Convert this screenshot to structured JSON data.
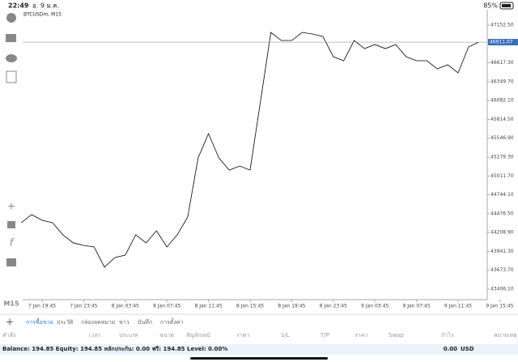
{
  "status_bar": {
    "time": "22:49",
    "date": "อ. 9 ม.ค.",
    "battery": "85%"
  },
  "sidebar": {
    "timeframe": "M15"
  },
  "chart_data": {
    "type": "line",
    "title": "BTCUSDm, M15",
    "categories": [
      null,
      null,
      "7 Jan 19:45",
      null,
      null,
      null,
      "7 Jan 23:45",
      null,
      null,
      null,
      "8 Jan 03:45",
      null,
      null,
      null,
      "8 Jan 07:45",
      null,
      null,
      null,
      "8 Jan 11:45",
      null,
      null,
      null,
      "8 Jan 15:45",
      null,
      null,
      null,
      "8 Jan 19:45",
      null,
      null,
      null,
      "8 Jan 23:45",
      null,
      null,
      null,
      "9 Jan 03:45",
      null,
      null,
      null,
      "9 Jan 07:45",
      null,
      null,
      null,
      "9 Jan 11:45",
      null,
      null,
      null,
      "9 Jan 15:45"
    ],
    "series": [
      {
        "color": "#000000",
        "values": [
          44349,
          44464,
          44383,
          44349,
          44177,
          44062,
          44027,
          44004,
          43717,
          43855,
          43889,
          44177,
          44062,
          44234,
          44004,
          44177,
          44429,
          45268,
          45613,
          45268,
          45096,
          45153,
          45096,
          46072,
          47049,
          46934,
          46934,
          47049,
          47026,
          46992,
          46704,
          46647,
          46934,
          46819,
          46877,
          46819,
          46877,
          46704,
          46647,
          46647,
          46532,
          46590,
          46475,
          46842,
          46911,
          null,
          null
        ]
      }
    ],
    "ylim": [
      43257,
      47348
    ],
    "yticks": [
      {
        "value": 43406.1,
        "label": "43406.10"
      },
      {
        "value": 43673.7,
        "label": "43673.70"
      },
      {
        "value": 43941.3,
        "label": "43941.30"
      },
      {
        "value": 44208.9,
        "label": "44208.90"
      },
      {
        "value": 44476.5,
        "label": "44476.50"
      },
      {
        "value": 44744.1,
        "label": "44744.10"
      },
      {
        "value": 45011.7,
        "label": "45011.70"
      },
      {
        "value": 45279.3,
        "label": "45279.30"
      },
      {
        "value": 45546.9,
        "label": "45546.90"
      },
      {
        "value": 45814.5,
        "label": "45814.50"
      },
      {
        "value": 46082.1,
        "label": "46082.10"
      },
      {
        "value": 46349.7,
        "label": "46349.70"
      },
      {
        "value": 46617.3,
        "label": "46617.30"
      },
      {
        "value": 47152.5,
        "label": "47152.50"
      }
    ],
    "current_price": 46911.07
  },
  "tabs": [
    "การซื้อขาย",
    "ประวัติ",
    "กล่องจดหมาย",
    "ข่าว",
    "บันทึก",
    "การตั้งค่า"
  ],
  "table": {
    "headers": [
      "คำสั่ง",
      "เวลา",
      "ประเภท",
      "ขนาด",
      "สัญลักษณ์",
      "ราคา",
      "S/L",
      "T/P",
      "ราคา",
      "Swap",
      "กำไร",
      "หมายเหตุ"
    ]
  },
  "summary": {
    "text": "Balance: 194.85 Equity: 194.85 หลักประกัน: 0.00 ฟรี: 194.85 Level: 0.00%",
    "profit": "0.00",
    "currency": "USD"
  }
}
